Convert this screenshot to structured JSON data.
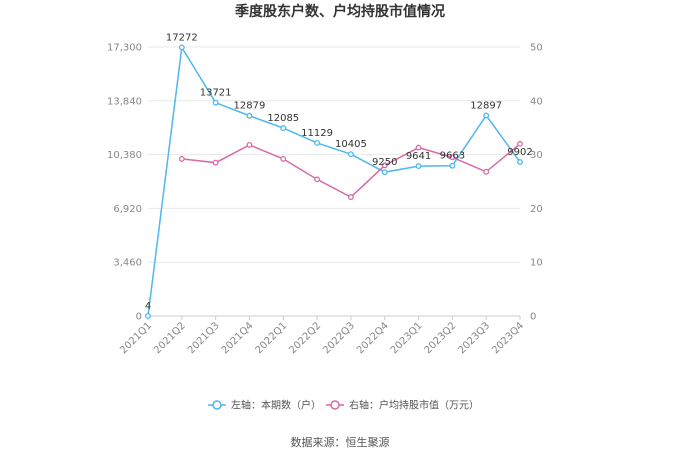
{
  "chart_data": {
    "type": "line",
    "title": "季度股东户数、户均持股市值情况",
    "categories": [
      "2021Q1",
      "2021Q2",
      "2021Q3",
      "2021Q4",
      "2022Q1",
      "2022Q2",
      "2022Q3",
      "2022Q4",
      "2023Q1",
      "2023Q2",
      "2023Q3",
      "2023Q4"
    ],
    "y_left": {
      "ticks": [
        "0",
        "3,460",
        "6,920",
        "10,380",
        "13,840",
        "17,300"
      ],
      "ylim": [
        0,
        17300
      ]
    },
    "y_right": {
      "ticks": [
        "0",
        "10",
        "20",
        "30",
        "40",
        "50"
      ],
      "ylim": [
        0,
        50
      ]
    },
    "grid": true,
    "legend_position": "bottom",
    "series": [
      {
        "name": "左轴：本期数（户）",
        "axis": "left",
        "color": "#4db8ec",
        "values": [
          4,
          17272,
          13721,
          12879,
          12085,
          11129,
          10405,
          9250,
          9641,
          9663,
          12897,
          9902
        ],
        "labels": [
          "4",
          "17272",
          "13721",
          "12879",
          "12085",
          "11129",
          "10405",
          "9250",
          "9641",
          "9663",
          "12897",
          "9902"
        ]
      },
      {
        "name": "右轴：户均持股市值（万元）",
        "axis": "right",
        "color": "#d96aa8",
        "values": [
          null,
          29.2,
          28.5,
          31.8,
          29.2,
          25.4,
          22.1,
          28.0,
          31.3,
          29.5,
          26.8,
          32.0
        ]
      }
    ]
  },
  "source_text": "数据来源：恒生聚源"
}
